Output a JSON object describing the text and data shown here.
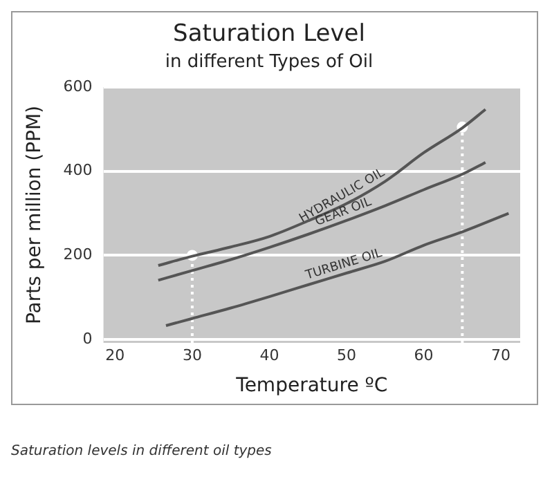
{
  "chart_data": {
    "type": "line",
    "title": "Saturation Level",
    "subtitle": "in different Types of Oil",
    "xlabel": "Temperature ºC",
    "ylabel": "Parts per million (PPM)",
    "annotations": [
      "Saturation levels in different oil types"
    ],
    "xlim": [
      18.5,
      72.5
    ],
    "xticks": [
      20,
      30,
      40,
      50,
      60,
      70
    ],
    "ylim": [
      -8,
      600
    ],
    "yticks": [
      0,
      200,
      400,
      600
    ],
    "grid": "y",
    "legend": false,
    "marker": "none",
    "series": [
      {
        "name": "HYDRAULIC OIL",
        "color": "#555555",
        "x": [
          25.6,
          30,
          35,
          40,
          45,
          50,
          55,
          60,
          65,
          68
        ],
        "values": [
          176,
          198,
          220,
          245,
          282,
          323,
          376,
          444,
          503,
          547
        ]
      },
      {
        "name": "GEAR OIL",
        "color": "#555555",
        "x": [
          25.6,
          30,
          35,
          40,
          45,
          50,
          55,
          60,
          65,
          68
        ],
        "values": [
          141,
          164,
          190,
          219,
          250,
          283,
          318,
          356,
          393,
          421
        ]
      },
      {
        "name": "TURBINE OIL",
        "color": "#555555",
        "x": [
          26.6,
          30,
          35,
          40,
          45,
          50,
          55,
          60,
          65,
          71
        ],
        "values": [
          33,
          50,
          75,
          102,
          130,
          158,
          186,
          224,
          256,
          300
        ]
      },
      {
        "type": "scatter",
        "marker": "circle",
        "color": "#ffffff",
        "x": [
          30,
          65
        ],
        "values": [
          200,
          505
        ]
      }
    ],
    "ref_lines": [
      {
        "axis": "x",
        "value": 30,
        "color": "#ffffff",
        "line_style": "dotted"
      },
      {
        "axis": "x",
        "value": 65,
        "color": "#ffffff",
        "line_style": "dotted"
      }
    ]
  }
}
